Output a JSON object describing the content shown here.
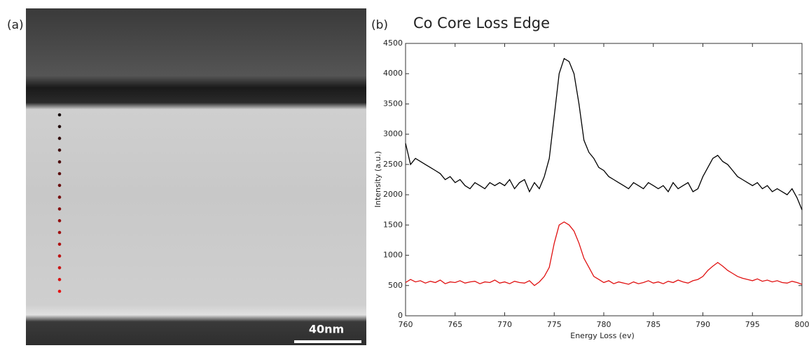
{
  "panel_a": {
    "label": "(a)",
    "scale_bar": "40nm"
  },
  "chart_data": {
    "type": "line",
    "panel_label": "(b)",
    "title": "Co Core Loss Edge",
    "x_label": "Energy Loss (ev)",
    "y_label": "Intensity (a.u.)",
    "x": [
      760,
      760.5,
      761,
      761.5,
      762,
      762.5,
      763,
      763.5,
      764,
      764.5,
      765,
      765.5,
      766,
      766.5,
      767,
      767.5,
      768,
      768.5,
      769,
      769.5,
      770,
      770.5,
      771,
      771.5,
      772,
      772.5,
      773,
      773.5,
      774,
      774.5,
      775,
      775.5,
      776,
      776.5,
      777,
      777.5,
      778,
      778.5,
      779,
      779.5,
      780,
      780.5,
      781,
      781.5,
      782,
      782.5,
      783,
      783.5,
      784,
      784.5,
      785,
      785.5,
      786,
      786.5,
      787,
      787.5,
      788,
      788.5,
      789,
      789.5,
      790,
      790.5,
      791,
      791.5,
      792,
      792.5,
      793,
      793.5,
      794,
      794.5,
      795,
      795.5,
      796,
      796.5,
      797,
      797.5,
      798,
      798.5,
      799,
      799.5,
      800
    ],
    "series": [
      {
        "color": "#000000",
        "values": [
          2850,
          2500,
          2600,
          2550,
          2500,
          2450,
          2400,
          2350,
          2250,
          2300,
          2200,
          2250,
          2150,
          2100,
          2200,
          2150,
          2100,
          2200,
          2150,
          2200,
          2150,
          2250,
          2100,
          2200,
          2250,
          2050,
          2200,
          2100,
          2300,
          2600,
          3300,
          4000,
          4250,
          4200,
          4000,
          3500,
          2900,
          2700,
          2600,
          2450,
          2400,
          2300,
          2250,
          2200,
          2150,
          2100,
          2200,
          2150,
          2100,
          2200,
          2150,
          2100,
          2150,
          2050,
          2200,
          2100,
          2150,
          2200,
          2050,
          2100,
          2300,
          2450,
          2600,
          2650,
          2550,
          2500,
          2400,
          2300,
          2250,
          2200,
          2150,
          2200,
          2100,
          2150,
          2050,
          2100,
          2050,
          2000,
          2100,
          1950,
          1750
        ]
      },
      {
        "color": "#e01010",
        "values": [
          550,
          600,
          560,
          580,
          540,
          570,
          550,
          590,
          530,
          560,
          550,
          580,
          540,
          560,
          570,
          530,
          560,
          550,
          590,
          540,
          560,
          530,
          570,
          550,
          540,
          580,
          500,
          560,
          650,
          800,
          1200,
          1500,
          1550,
          1500,
          1400,
          1200,
          950,
          800,
          650,
          600,
          550,
          580,
          530,
          560,
          540,
          520,
          560,
          530,
          550,
          580,
          540,
          560,
          530,
          570,
          550,
          590,
          560,
          540,
          580,
          600,
          650,
          750,
          820,
          880,
          820,
          750,
          700,
          650,
          620,
          600,
          580,
          610,
          570,
          590,
          560,
          580,
          550,
          540,
          570,
          550,
          520
        ]
      }
    ],
    "xlim": [
      760,
      800
    ],
    "xticks": [
      760,
      765,
      770,
      775,
      780,
      785,
      790,
      795,
      800
    ],
    "ylim": [
      0,
      4500
    ],
    "yticks": [
      0,
      500,
      1000,
      1500,
      2000,
      2500,
      3000,
      3500,
      4000,
      4500
    ]
  }
}
